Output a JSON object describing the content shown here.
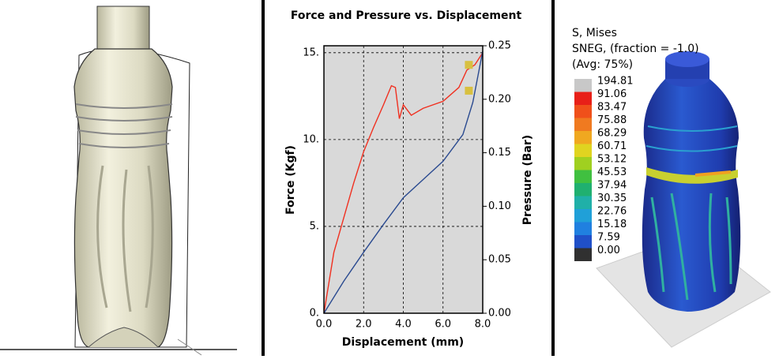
{
  "chart_data": {
    "type": "line",
    "title": "Force and Pressure vs. Displacement",
    "x_label": "Displacement (mm)",
    "y_label": "Force (Kgf)",
    "y2_label": "Pressure (Bar)",
    "xlim": [
      0,
      8.0
    ],
    "ylim": [
      0,
      15.4
    ],
    "y2lim": [
      0,
      0.25
    ],
    "xticks": [
      {
        "value": 0,
        "label": "0.0"
      },
      {
        "value": 2,
        "label": "2.0"
      },
      {
        "value": 4,
        "label": "4.0"
      },
      {
        "value": 6,
        "label": "6.0"
      },
      {
        "value": 8,
        "label": "8.0"
      }
    ],
    "yticks": [
      {
        "value": 0,
        "label": "0."
      },
      {
        "value": 5,
        "label": "5."
      },
      {
        "value": 10,
        "label": "10."
      },
      {
        "value": 15,
        "label": "15."
      }
    ],
    "y2ticks": [
      {
        "value": 0,
        "label": "0.00"
      },
      {
        "value": 0.05,
        "label": "0.05"
      },
      {
        "value": 0.1,
        "label": "0.10"
      },
      {
        "value": 0.15,
        "label": "0.15"
      },
      {
        "value": 0.2,
        "label": "0.20"
      },
      {
        "value": 0.25,
        "label": "0.25"
      }
    ],
    "grid": true,
    "series": [
      {
        "color": "#f03020",
        "x": [
          0,
          0.5,
          1.0,
          1.5,
          2.0,
          2.5,
          3.0,
          3.4,
          3.6,
          3.8,
          4.0,
          4.4,
          5.0,
          6.0,
          6.8,
          7.2,
          7.6,
          8.0
        ],
        "values": [
          0,
          3.5,
          5.5,
          7.5,
          9.3,
          10.7,
          12.0,
          13.1,
          13.0,
          11.2,
          12.0,
          11.4,
          11.8,
          12.2,
          13.0,
          14.0,
          14.3,
          15.0
        ]
      },
      {
        "color": "#2a4a90",
        "axis": "y2",
        "x": [
          0,
          1,
          2,
          3,
          4,
          5,
          6,
          7,
          7.5,
          8
        ],
        "values": [
          0,
          0.03,
          0.057,
          0.083,
          0.108,
          0.125,
          0.142,
          0.167,
          0.197,
          0.245
        ]
      }
    ],
    "highlight": {
      "color": "#d8c040",
      "x": 7.3,
      "force": 14.3,
      "pressure": 0.208
    }
  },
  "contour_legend": {
    "lines": [
      "S, Mises",
      "SNEG, (fraction = -1.0)",
      "(Avg: 75%)"
    ],
    "levels": [
      {
        "label": "194.81",
        "color": "#c8c8c8"
      },
      {
        "label": "91.06",
        "color": "#e82018"
      },
      {
        "label": "83.47",
        "color": "#f0501a"
      },
      {
        "label": "75.88",
        "color": "#f07a20"
      },
      {
        "label": "68.29",
        "color": "#f0a820"
      },
      {
        "label": "60.71",
        "color": "#e0d420"
      },
      {
        "label": "53.12",
        "color": "#a0d020"
      },
      {
        "label": "45.53",
        "color": "#40c040"
      },
      {
        "label": "37.94",
        "color": "#20b070"
      },
      {
        "label": "30.35",
        "color": "#20b0a8"
      },
      {
        "label": "22.76",
        "color": "#20a0d8"
      },
      {
        "label": "15.18",
        "color": "#2080e0"
      },
      {
        "label": "7.59",
        "color": "#2050c8"
      },
      {
        "label": "0.00",
        "color": "#303030"
      }
    ]
  }
}
